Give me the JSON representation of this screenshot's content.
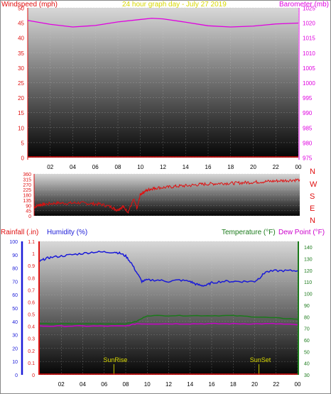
{
  "colors": {
    "wind": "#e01010",
    "barometer": "#e000e0",
    "rainfall": "#e01010",
    "humidity": "#1a1ad8",
    "temperature": "#1a7a1a",
    "dewpoint": "#cc00cc",
    "title": "#d8d800",
    "sun_marker": "#c8c800",
    "frame_axis": "#f0f0f0"
  },
  "x_ticks": [
    "02",
    "04",
    "06",
    "08",
    "10",
    "12",
    "14",
    "16",
    "18",
    "20",
    "22",
    "00"
  ],
  "top": {
    "left_label": "Windspeed (mph)",
    "title": "24 hour graph day - July 27 2019",
    "right_label": "Barometer (mb)",
    "left_ticks": [
      "50",
      "45",
      "40",
      "35",
      "30",
      "25",
      "20",
      "15",
      "10",
      "5",
      "0"
    ],
    "right_ticks": [
      "1025",
      "1020",
      "1015",
      "1010",
      "1005",
      "1000",
      "995",
      "990",
      "985",
      "980",
      "975"
    ]
  },
  "mid": {
    "left_ticks": [
      "360",
      "315",
      "270",
      "225",
      "180",
      "135",
      "90",
      "45",
      "0"
    ],
    "compass": [
      "N",
      "W",
      "S",
      "E",
      "N"
    ]
  },
  "bottom": {
    "rain_label": "Rainfall (.in)",
    "humidity_label": "Humidity (%)",
    "temp_label": "Temperature (°F)",
    "dew_label": "Dew Point (°F)",
    "humidity_ticks": [
      "100",
      "90",
      "80",
      "70",
      "60",
      "50",
      "40",
      "30",
      "20",
      "10",
      "0"
    ],
    "rain_ticks": [
      "1.1",
      "1",
      "0.9",
      "0.8",
      "0.7",
      "0.6",
      "0.5",
      "0.4",
      "0.3",
      "0.2",
      "0.1",
      "0"
    ],
    "temp_ticks": [
      "140",
      "130",
      "120",
      "110",
      "100",
      "90",
      "80",
      "70",
      "60",
      "50",
      "40",
      "30"
    ],
    "sunrise": "SunRise",
    "sunset": "SunSet"
  },
  "chart_data": [
    {
      "type": "line",
      "x_unit": "hour",
      "xlim": [
        0,
        24
      ],
      "y_left": {
        "label": "Windspeed (mph)",
        "lim": [
          0,
          50
        ]
      },
      "y_right": {
        "label": "Barometer (mb)",
        "lim": [
          975,
          1025
        ]
      },
      "series": [
        {
          "name": "Windspeed (mph)",
          "axis": "left",
          "x": [
            0,
            24
          ],
          "values": [
            0,
            0
          ]
        },
        {
          "name": "Barometer (mb)",
          "axis": "right",
          "x": [
            0,
            2,
            4,
            6,
            8,
            10,
            11,
            12,
            14,
            16,
            18,
            20,
            22,
            24
          ],
          "values": [
            1020.8,
            1019.5,
            1018.6,
            1019.1,
            1020.3,
            1021.1,
            1021.5,
            1021.3,
            1020.2,
            1019.0,
            1018.6,
            1018.9,
            1019.6,
            1019.9
          ]
        }
      ]
    },
    {
      "type": "scatter",
      "x_unit": "hour",
      "xlim": [
        0,
        24
      ],
      "ylim": [
        0,
        360
      ],
      "series": [
        {
          "name": "Wind direction",
          "x": [
            0,
            0.5,
            1,
            2,
            3,
            4,
            5,
            6,
            7,
            7.5,
            8,
            8.5,
            9,
            9.3,
            9.6,
            10,
            10.5,
            11,
            12,
            13,
            14,
            15,
            16,
            17,
            18,
            19,
            20,
            21,
            22,
            23,
            24
          ],
          "values": [
            75,
            95,
            100,
            110,
            108,
            112,
            105,
            100,
            75,
            50,
            80,
            35,
            140,
            60,
            185,
            210,
            230,
            240,
            245,
            255,
            260,
            270,
            275,
            280,
            280,
            285,
            290,
            295,
            300,
            305,
            310
          ]
        }
      ]
    },
    {
      "type": "line",
      "x_unit": "hour",
      "xlim": [
        0,
        24
      ],
      "y_humidity": {
        "label": "Humidity (%)",
        "lim": [
          0,
          100
        ]
      },
      "y_rain": {
        "label": "Rainfall (.in)",
        "lim": [
          0,
          1.1
        ]
      },
      "y_temp": {
        "label": "Temperature (°F)",
        "lim": [
          30,
          145
        ]
      },
      "sunrise_hour": 6.9,
      "sunset_hour": 20.4,
      "series": [
        {
          "name": "Humidity (%)",
          "axis": "humidity",
          "x": [
            0,
            0.5,
            1,
            2,
            3,
            4,
            5,
            6,
            7,
            7.5,
            8,
            8.5,
            9,
            9.5,
            10,
            11,
            12,
            13,
            14,
            14.5,
            15,
            15.5,
            16,
            17,
            18,
            19,
            20,
            20.5,
            21,
            22,
            23,
            24
          ],
          "values": [
            85,
            87,
            88,
            89,
            90,
            91,
            92,
            92,
            92,
            91,
            89,
            84,
            77,
            70,
            71,
            71,
            70,
            71,
            70,
            68,
            67,
            67,
            69,
            70,
            70,
            70,
            70,
            73,
            77,
            78,
            78,
            78
          ]
        },
        {
          "name": "Rainfall (.in)",
          "axis": "rain",
          "x": [
            0,
            24
          ],
          "values": [
            0,
            0
          ]
        },
        {
          "name": "Temperature (°F)",
          "axis": "temp",
          "x": [
            0,
            2,
            4,
            6,
            8,
            9,
            10,
            12,
            14,
            16,
            18,
            20,
            22,
            24
          ],
          "values": [
            74,
            74,
            74,
            74,
            74,
            76,
            81,
            81,
            81,
            81,
            81,
            80,
            79,
            78
          ]
        },
        {
          "name": "Dew Point (°F)",
          "axis": "temp",
          "x": [
            0,
            2,
            4,
            6,
            8,
            9,
            10,
            12,
            14,
            16,
            18,
            20,
            22,
            24
          ],
          "values": [
            72,
            72,
            72,
            72,
            72,
            74,
            74,
            74,
            74,
            74,
            74,
            74,
            74,
            73
          ]
        }
      ]
    }
  ]
}
